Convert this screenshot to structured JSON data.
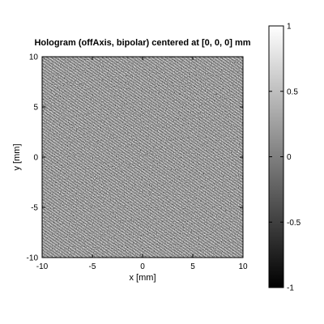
{
  "chart_data": {
    "type": "heatmap",
    "title": "Hologram (offAxis, bipolar) centered at [0, 0, 0] mm",
    "xlabel": "x [mm]",
    "ylabel": "y [mm]",
    "xlim": [
      -10,
      10
    ],
    "ylim": [
      -10,
      10
    ],
    "x_ticks": [
      -10,
      -5,
      0,
      5,
      10
    ],
    "y_ticks": [
      -10,
      -5,
      0,
      5,
      10
    ],
    "x_tick_labels": [
      "-10",
      "-5",
      "0",
      "5",
      "10"
    ],
    "y_tick_labels": [
      "-10",
      "-5",
      "0",
      "5",
      "10"
    ],
    "colormap": "gray",
    "color_range": [
      -1,
      1
    ],
    "colorbar_ticks": [
      1,
      0.5,
      0,
      -0.5,
      -1
    ],
    "colorbar_tick_labels": [
      "1",
      "0.5",
      "0",
      "-0.5",
      "-1"
    ],
    "grid": false
  }
}
